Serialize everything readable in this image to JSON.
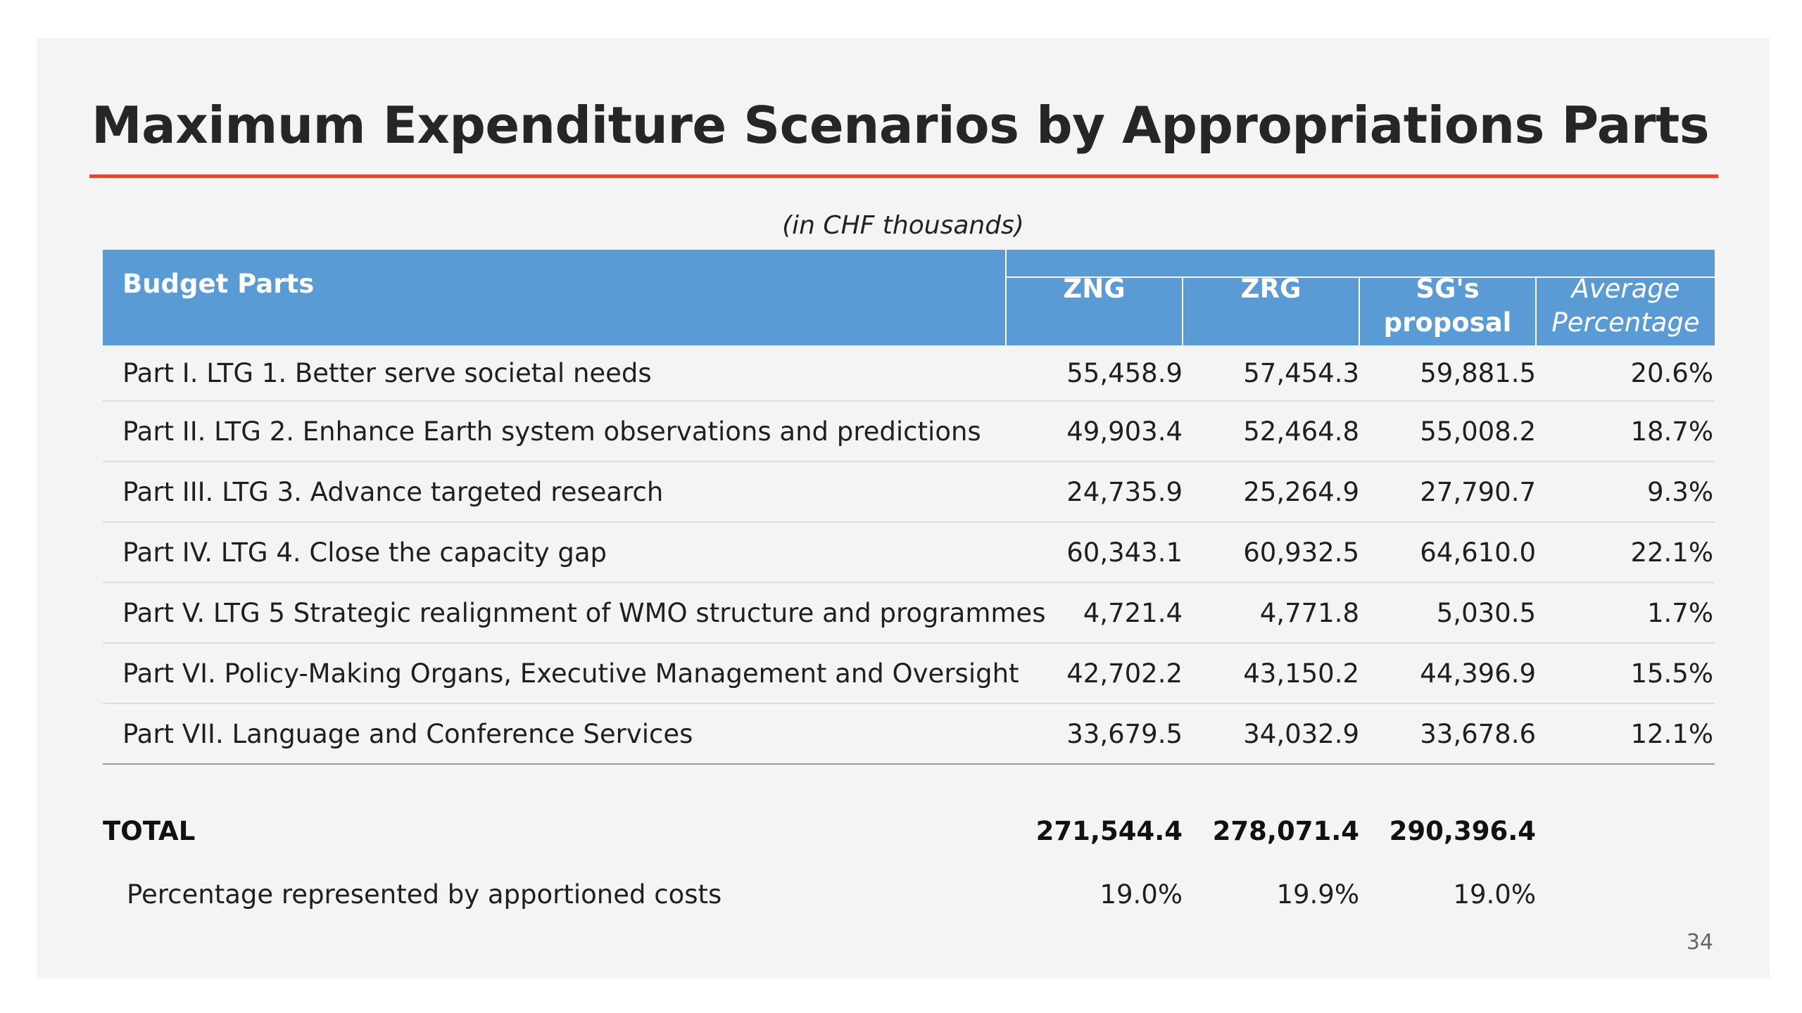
{
  "slide": {
    "title": "Maximum Expenditure Scenarios by Appropriations Parts",
    "units": "(in CHF thousands)",
    "page_number": "34",
    "accent_color": "#e8452c",
    "header_color": "#5b9bd5"
  },
  "table": {
    "headers": {
      "budget_parts": "Budget Parts",
      "zng": "ZNG",
      "zrg": "ZRG",
      "sg": "SG's proposal",
      "avg": "Average Percentage"
    },
    "rows": [
      {
        "part": "Part I. LTG 1. Better serve societal needs",
        "zng": "55,458.9",
        "zrg": "57,454.3",
        "sg": "59,881.5",
        "avg": "20.6%"
      },
      {
        "part": "Part II. LTG 2. Enhance Earth system observations and predictions",
        "zng": "49,903.4",
        "zrg": "52,464.8",
        "sg": "55,008.2",
        "avg": "18.7%"
      },
      {
        "part": "Part III. LTG 3. Advance targeted research",
        "zng": "24,735.9",
        "zrg": "25,264.9",
        "sg": "27,790.7",
        "avg": "9.3%"
      },
      {
        "part": "Part IV. LTG 4. Close the capacity gap",
        "zng": "60,343.1",
        "zrg": "60,932.5",
        "sg": "64,610.0",
        "avg": "22.1%"
      },
      {
        "part": "Part V. LTG 5 Strategic realignment of WMO structure and programmes",
        "zng": "4,721.4",
        "zrg": "4,771.8",
        "sg": "5,030.5",
        "avg": "1.7%"
      },
      {
        "part": "Part VI. Policy-Making Organs, Executive Management and Oversight",
        "zng": "42,702.2",
        "zrg": "43,150.2",
        "sg": "44,396.9",
        "avg": "15.5%"
      },
      {
        "part": "Part VII. Language and Conference Services",
        "zng": "33,679.5",
        "zrg": "34,032.9",
        "sg": "33,678.6",
        "avg": "12.1%"
      }
    ],
    "total": {
      "label": "TOTAL",
      "zng": "271,544.4",
      "zrg": "278,071.4",
      "sg": "290,396.4",
      "avg": ""
    },
    "apportioned": {
      "label": "Percentage represented by apportioned costs",
      "zng": "19.0%",
      "zrg": "19.9%",
      "sg": "19.0%"
    }
  }
}
